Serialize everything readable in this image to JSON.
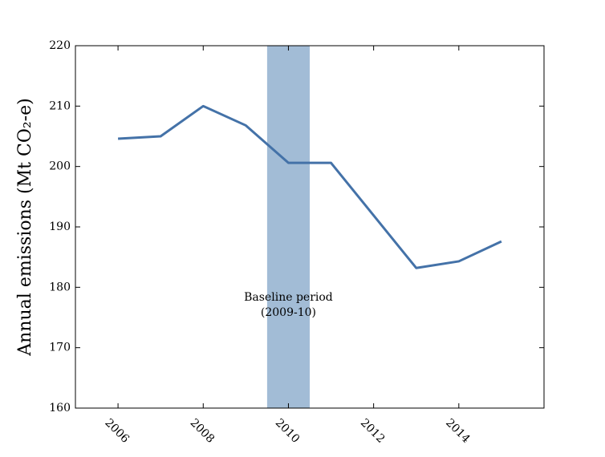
{
  "chart_data": {
    "type": "line",
    "ylabel": "Annual emissions (Mt CO₂-e)",
    "x": [
      2006,
      2007,
      2008,
      2009,
      2010,
      2011,
      2012,
      2013,
      2014,
      2015
    ],
    "series": [
      {
        "color": "#4472a8",
        "values": [
          204.6,
          205.0,
          210.0,
          206.8,
          200.6,
          200.6,
          191.9,
          183.2,
          184.3,
          187.6
        ]
      }
    ],
    "xlim": [
      2005,
      2016
    ],
    "xticks": [
      2006,
      2008,
      2010,
      2012,
      2014
    ],
    "ylim": [
      160,
      220
    ],
    "yticks": [
      160,
      170,
      180,
      190,
      200,
      210,
      220
    ],
    "shaded_region": {
      "x": [
        2009.5,
        2010.5
      ],
      "color": "#a2bcd6"
    },
    "annotation": [
      "Baseline period",
      "(2009-10)"
    ],
    "grid": false
  }
}
